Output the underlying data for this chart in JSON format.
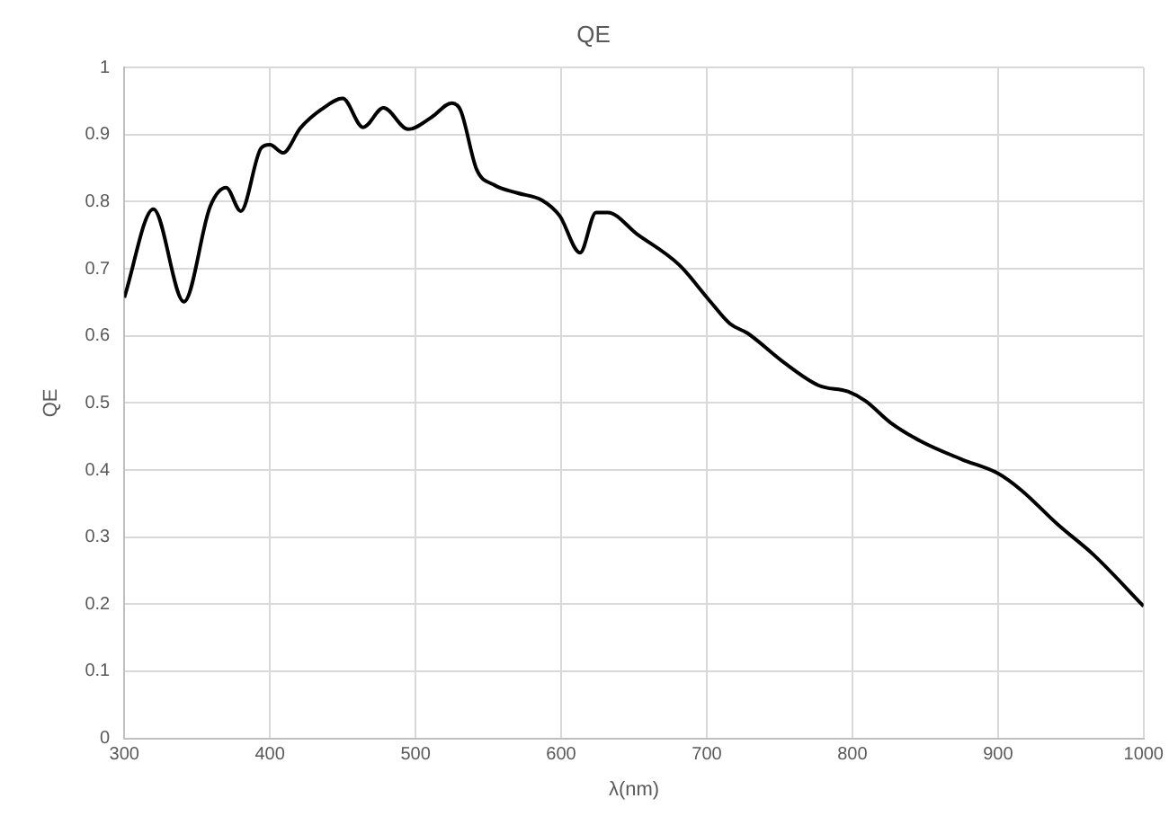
{
  "chart_data": {
    "type": "line",
    "title": "QE",
    "xlabel": "λ(nm)",
    "ylabel": "QE",
    "x": [
      300,
      320,
      341,
      359,
      370,
      380,
      394,
      400,
      409,
      421,
      435,
      450,
      464,
      478,
      495,
      511,
      525,
      531,
      542,
      554,
      570,
      587,
      599,
      613,
      624,
      632,
      652,
      681,
      701,
      716,
      728,
      752,
      777,
      797,
      809,
      826,
      847,
      875,
      900,
      916,
      941,
      966,
      1000
    ],
    "series": [
      {
        "color": "#000000",
        "values": [
          0.657,
          0.789,
          0.651,
          0.793,
          0.821,
          0.786,
          0.88,
          0.885,
          0.873,
          0.91,
          0.937,
          0.954,
          0.911,
          0.94,
          0.908,
          0.926,
          0.947,
          0.936,
          0.848,
          0.825,
          0.813,
          0.802,
          0.779,
          0.724,
          0.784,
          0.784,
          0.752,
          0.706,
          0.655,
          0.618,
          0.604,
          0.562,
          0.526,
          0.517,
          0.503,
          0.471,
          0.443,
          0.416,
          0.395,
          0.37,
          0.319,
          0.273,
          0.197
        ]
      }
    ],
    "xlim": [
      300,
      1000
    ],
    "xticks": [
      300,
      400,
      500,
      600,
      700,
      800,
      900,
      1000
    ],
    "ylim": [
      0,
      1
    ],
    "yticks": [
      0,
      0.1,
      0.2,
      0.3,
      0.4,
      0.5,
      0.6,
      0.7,
      0.8,
      0.9,
      1
    ],
    "grid": true,
    "legend": false,
    "marker": "none",
    "line_style": "solid"
  }
}
